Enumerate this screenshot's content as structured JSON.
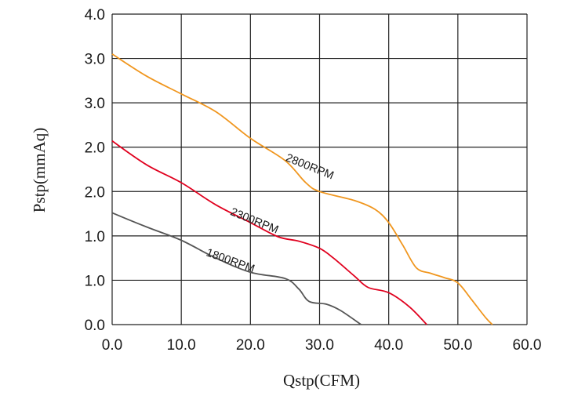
{
  "chart_data": {
    "type": "line",
    "title": "",
    "xlabel": "Qstp(CFM)",
    "ylabel": "Pstp(mmAq)",
    "x_ticks": [
      "0.0",
      "10.0",
      "20.0",
      "30.0",
      "40.0",
      "50.0",
      "60.0"
    ],
    "y_ticks": [
      "0.0",
      "1.0",
      "1.0",
      "2.0",
      "2.0",
      "3.0",
      "3.0",
      "4.0"
    ],
    "xlim": [
      0,
      60
    ],
    "ylim": [
      0,
      3.5
    ],
    "grid": true,
    "legend": "inline labels on curves",
    "series": [
      {
        "name": "2800RPM",
        "color": "#f0961e",
        "points": [
          [
            0,
            3.05
          ],
          [
            5,
            2.8
          ],
          [
            10,
            2.6
          ],
          [
            15,
            2.4
          ],
          [
            20,
            2.1
          ],
          [
            25,
            1.85
          ],
          [
            28,
            1.6
          ],
          [
            30,
            1.5
          ],
          [
            35,
            1.4
          ],
          [
            38,
            1.3
          ],
          [
            40,
            1.15
          ],
          [
            42,
            0.9
          ],
          [
            44,
            0.64
          ],
          [
            46,
            0.58
          ],
          [
            48,
            0.53
          ],
          [
            50,
            0.47
          ],
          [
            52,
            0.28
          ],
          [
            54,
            0.08
          ],
          [
            55,
            0
          ]
        ]
      },
      {
        "name": "2300RPM",
        "color": "#e0001e",
        "points": [
          [
            0,
            2.07
          ],
          [
            5,
            1.8
          ],
          [
            10,
            1.6
          ],
          [
            15,
            1.35
          ],
          [
            20,
            1.15
          ],
          [
            24,
            0.99
          ],
          [
            27,
            0.94
          ],
          [
            30,
            0.86
          ],
          [
            32,
            0.75
          ],
          [
            35,
            0.55
          ],
          [
            37,
            0.42
          ],
          [
            40,
            0.36
          ],
          [
            43,
            0.2
          ],
          [
            45.5,
            0
          ]
        ]
      },
      {
        "name": "1800RPM",
        "color": "#555555",
        "points": [
          [
            0,
            1.26
          ],
          [
            5,
            1.1
          ],
          [
            10,
            0.95
          ],
          [
            15,
            0.75
          ],
          [
            20,
            0.59
          ],
          [
            25,
            0.52
          ],
          [
            27,
            0.4
          ],
          [
            28.5,
            0.26
          ],
          [
            31,
            0.23
          ],
          [
            33,
            0.16
          ],
          [
            36,
            0
          ]
        ]
      }
    ],
    "annotations": [
      {
        "text": "2800RPM",
        "at": [
          25,
          1.85
        ],
        "angle": 22
      },
      {
        "text": "2300RPM",
        "at": [
          17,
          1.24
        ],
        "angle": 22
      },
      {
        "text": "1800RPM",
        "at": [
          13.5,
          0.78
        ],
        "angle": 20
      }
    ]
  }
}
